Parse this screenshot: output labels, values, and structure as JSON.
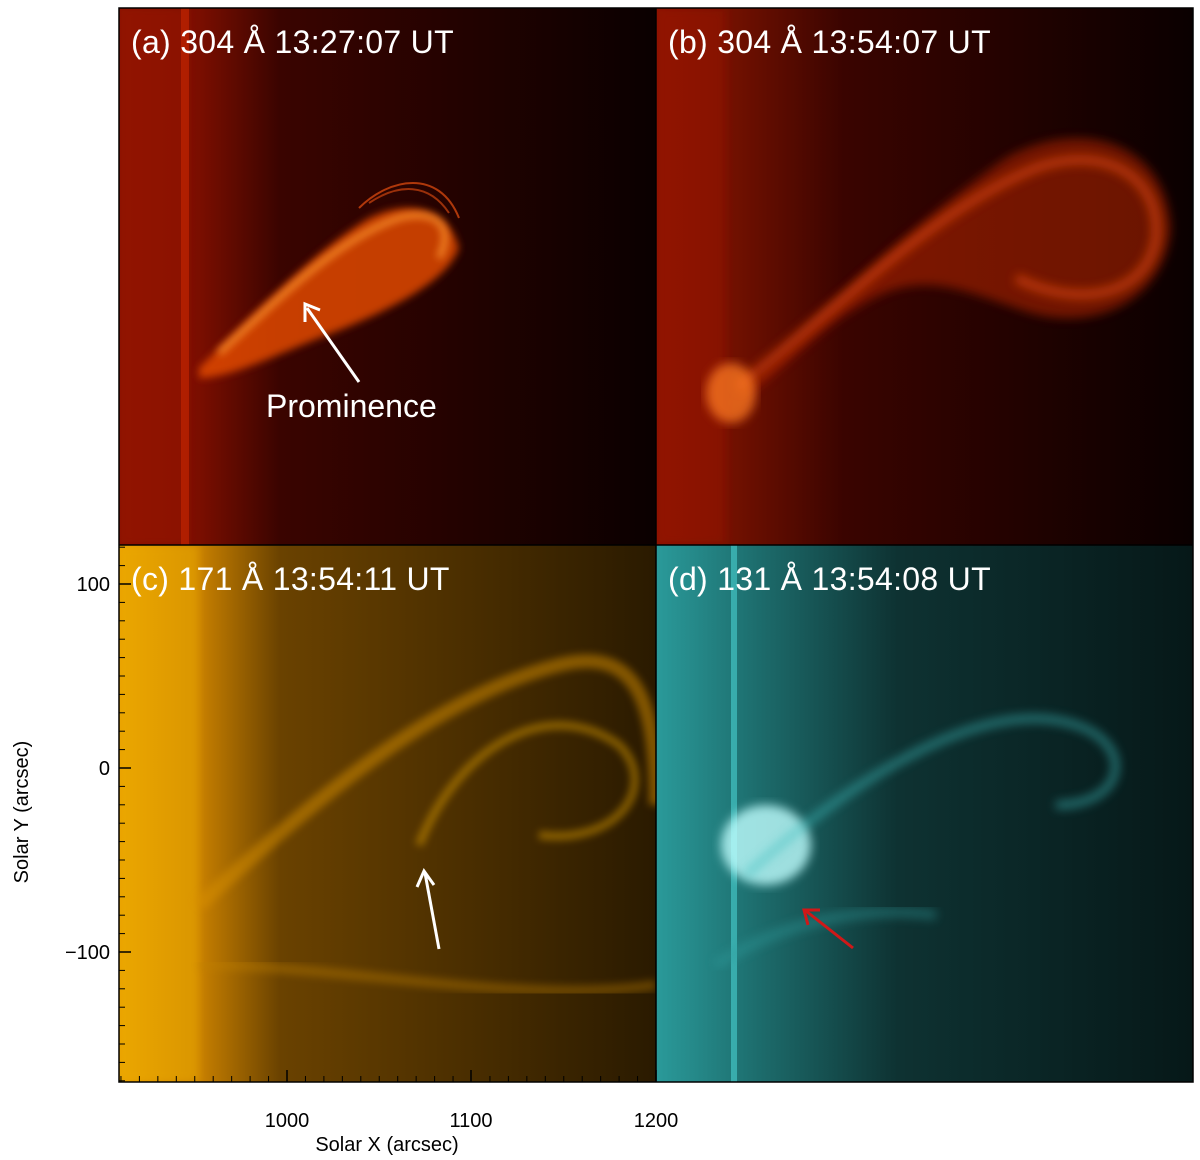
{
  "panels": [
    {
      "id": "a",
      "title": "(a) 304 Å 13:27:07 UT",
      "color": "#c81a00"
    },
    {
      "id": "b",
      "title": "(b) 304 Å 13:54:07 UT",
      "color": "#c81a00"
    },
    {
      "id": "c",
      "title": "(c) 171 Å 13:54:11 UT",
      "color": "#e8a000"
    },
    {
      "id": "d",
      "title": "(d) 131 Å 13:54:08 UT",
      "color": "#30e0e0"
    }
  ],
  "annotations": {
    "prominence_label": "Prominence"
  },
  "axes": {
    "xlabel": "Solar X (arcsec)",
    "ylabel": "Solar Y (arcsec)",
    "x_ticks": [
      "1000",
      "1100",
      "1200"
    ],
    "y_ticks": [
      "100",
      "0",
      "−100"
    ]
  },
  "colors": {
    "arrow_white": "#ffffff",
    "arrow_red": "#d01818"
  }
}
